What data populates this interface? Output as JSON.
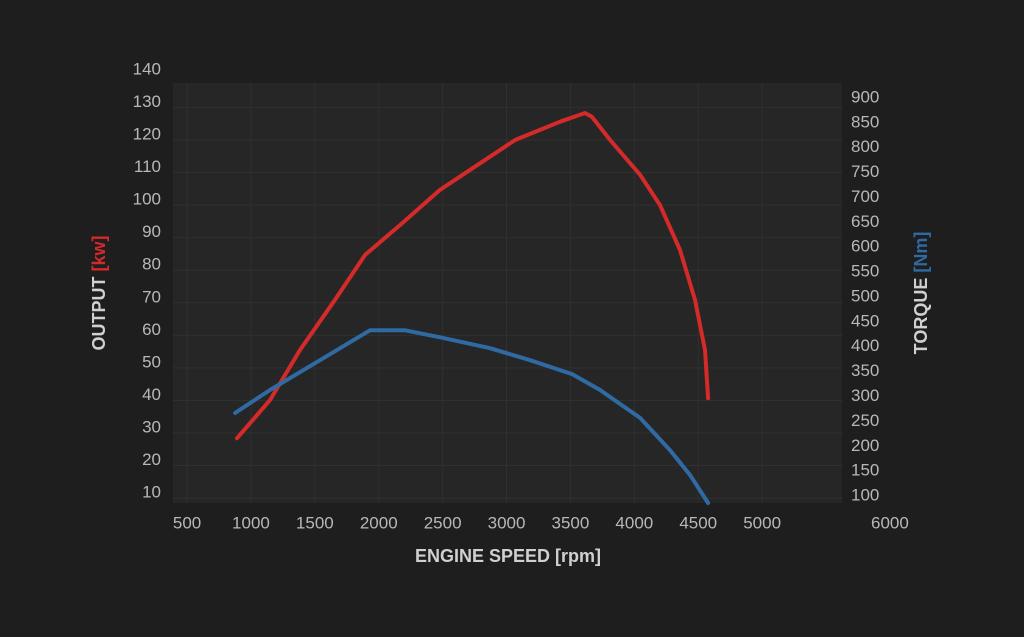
{
  "chart_data": {
    "type": "line",
    "x_label": "ENGINE SPEED [rpm]",
    "y_label": "OUTPUT",
    "y_unit": "[kw]",
    "y2_label": "TORQUE",
    "y2_unit": "[Nm]",
    "xlim": [
      390,
      5625
    ],
    "xticks": [
      500,
      1000,
      1500,
      2000,
      2500,
      3000,
      3500,
      4000,
      4500,
      5000,
      6000
    ],
    "ylim": [
      8.5,
      137.5
    ],
    "yticks": [
      10,
      20,
      30,
      40,
      50,
      60,
      70,
      80,
      90,
      100,
      110,
      120,
      130,
      140
    ],
    "y2lim": [
      86,
      930
    ],
    "y2ticks": [
      100,
      150,
      200,
      250,
      300,
      350,
      400,
      450,
      500,
      550,
      600,
      650,
      700,
      750,
      800,
      850,
      900
    ],
    "grid": true,
    "series": [
      {
        "name": "OUTPUT",
        "color": "#d42a2a",
        "x": [
          891,
          1149,
          1384,
          1658,
          1893,
          2167,
          2480,
          3067,
          3419,
          3614,
          3669,
          3810,
          4045,
          4201,
          4357,
          4475,
          4553,
          4577
        ],
        "values": [
          28.4,
          40.1,
          55.5,
          70.9,
          84.7,
          93.9,
          104.7,
          120.0,
          125.6,
          128.3,
          127.1,
          120.0,
          109.3,
          100.0,
          86.2,
          70.9,
          55.5,
          40.7
        ]
      },
      {
        "name": "TORQUE",
        "color": "#2f6aa3",
        "axis": "y2",
        "x": [
          876,
          1149,
          1540,
          1931,
          2206,
          2480,
          2871,
          3184,
          3513,
          3732,
          4045,
          4280,
          4436,
          4577
        ],
        "values": [
          267,
          313,
          373,
          433,
          433,
          419,
          397,
          373,
          345,
          313,
          257,
          192,
          142,
          86
        ]
      }
    ]
  }
}
